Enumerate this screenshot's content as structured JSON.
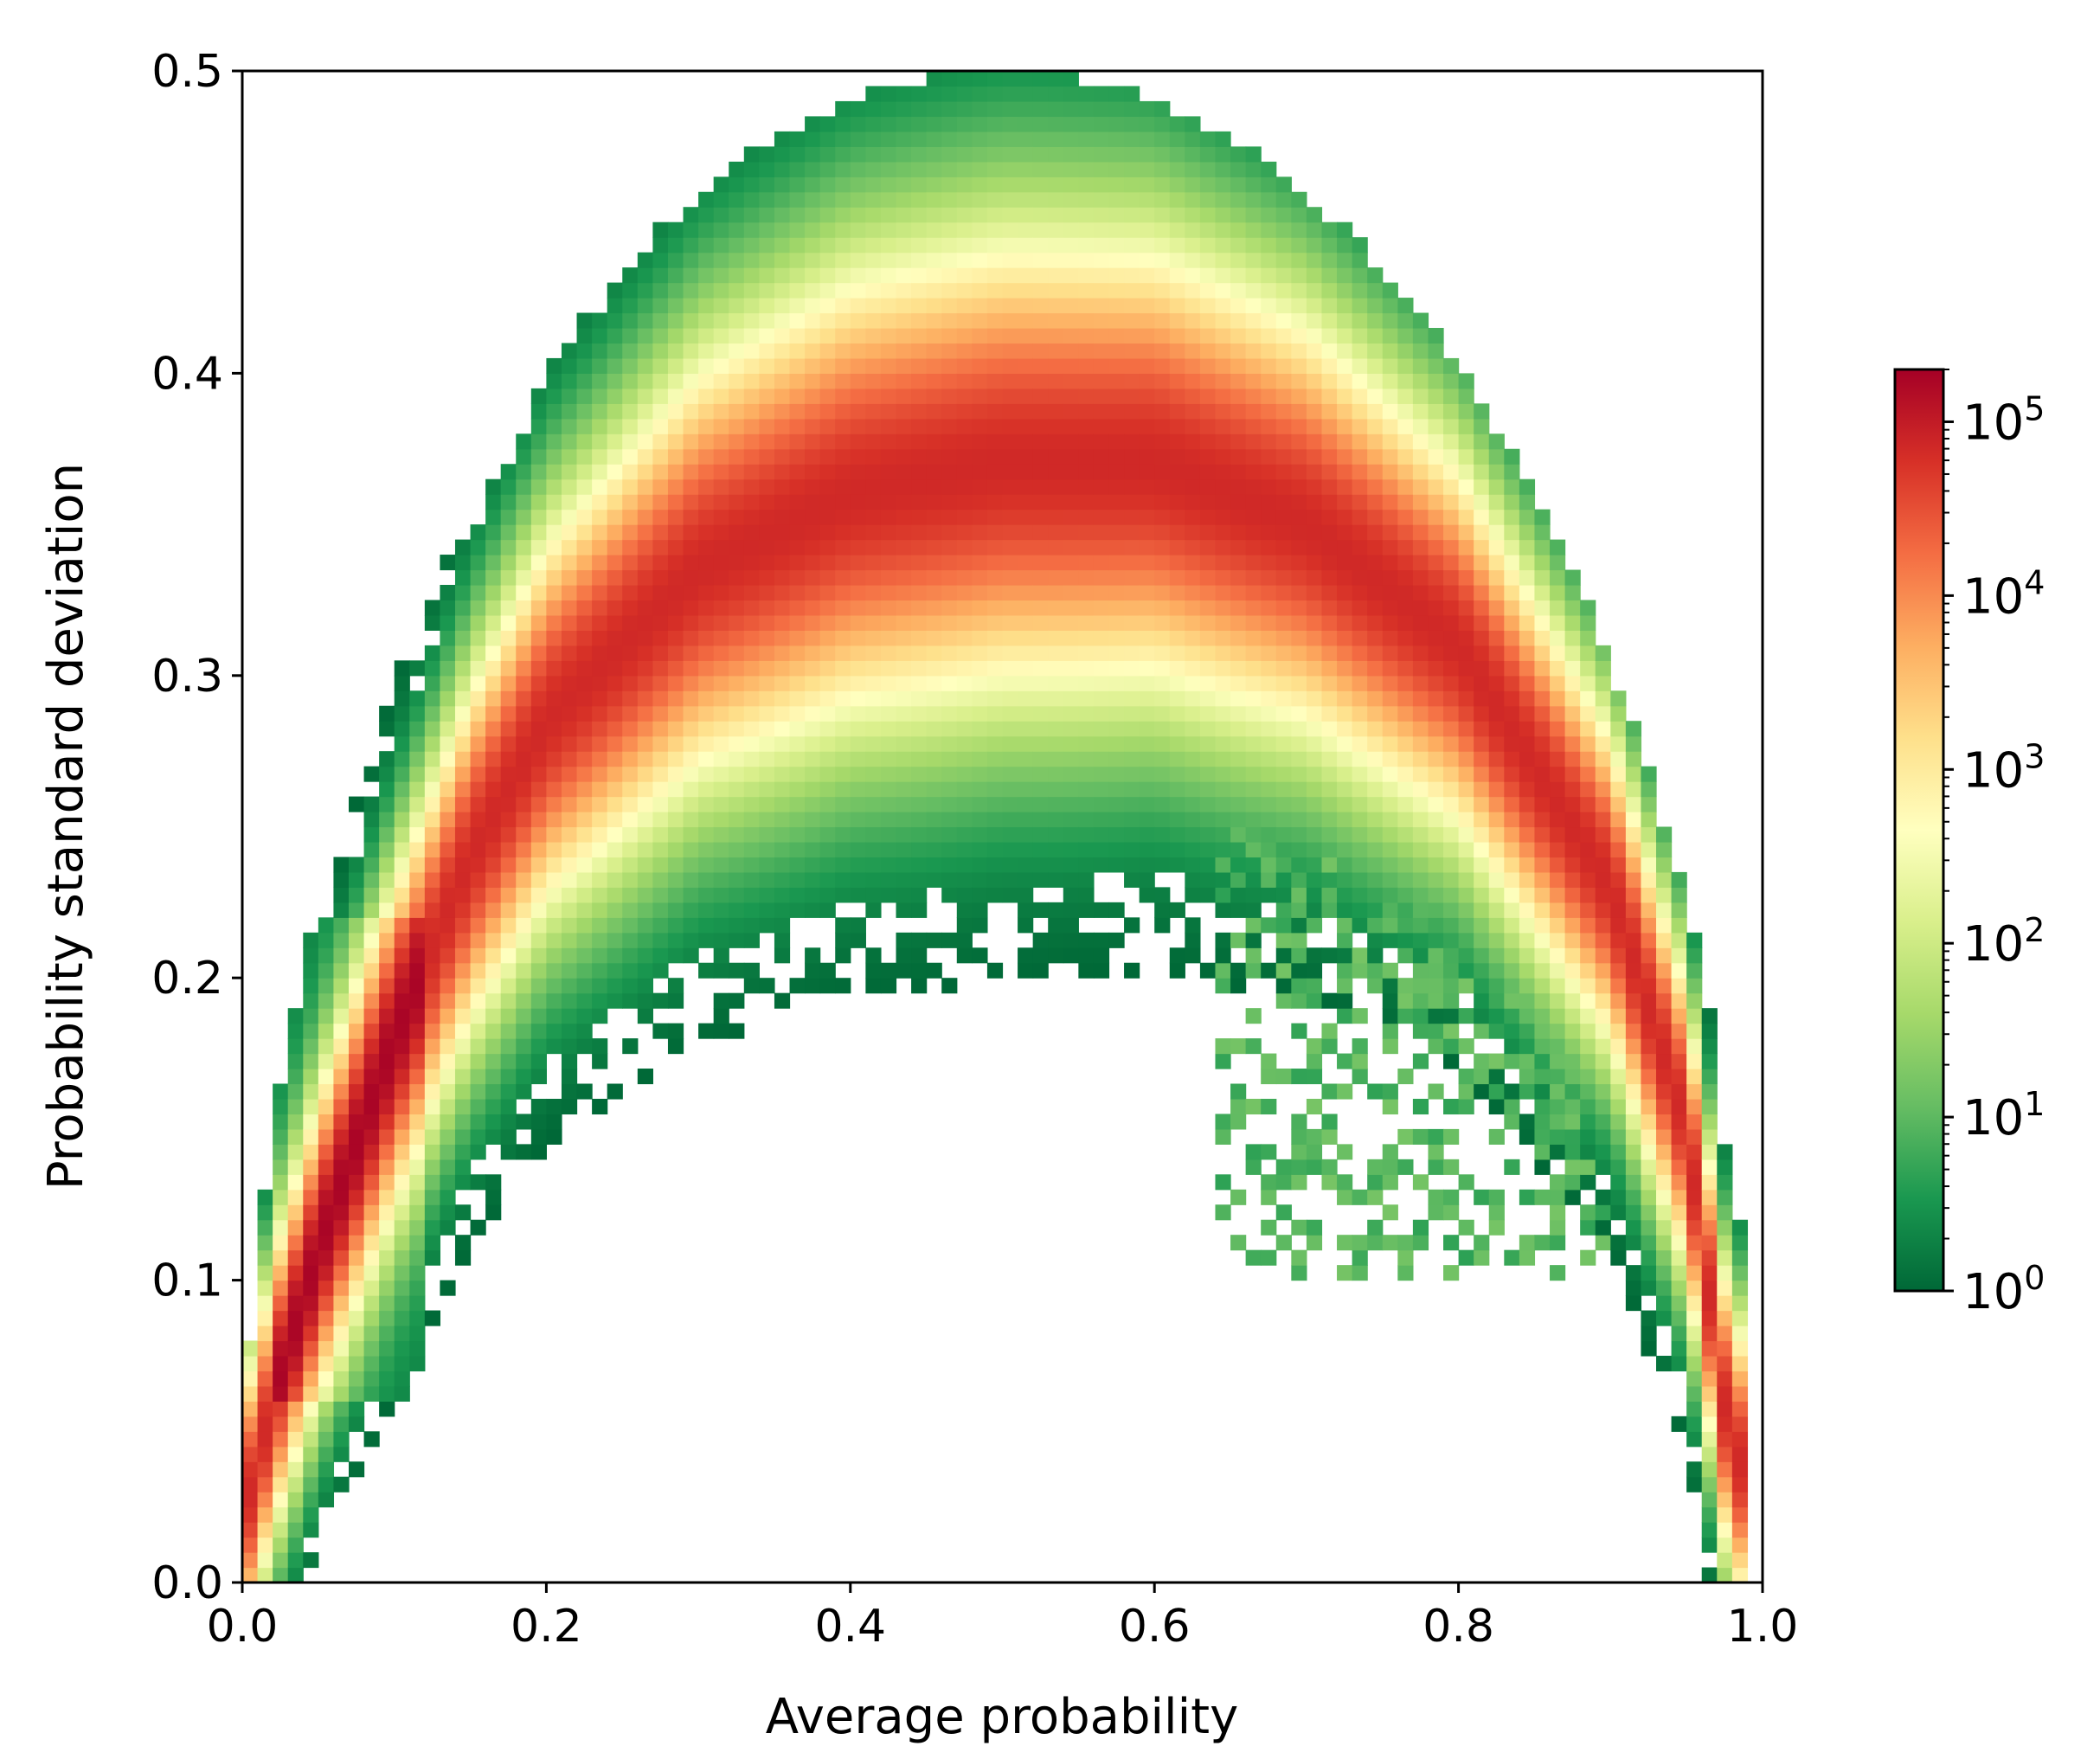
{
  "chart_data": {
    "type": "heatmap",
    "title": "",
    "xlabel": "Average probability",
    "ylabel": "Probability standard deviation",
    "xlim": [
      0.0,
      1.0
    ],
    "ylim": [
      0.0,
      0.5
    ],
    "x_ticks": [
      "0.0",
      "0.2",
      "0.4",
      "0.6",
      "0.8",
      "1.0"
    ],
    "y_ticks": [
      "0.0",
      "0.1",
      "0.2",
      "0.3",
      "0.4",
      "0.5"
    ],
    "grid": false,
    "colorscale": {
      "name": "RdYlGn_r",
      "scale": "log",
      "range": [
        1,
        200000
      ],
      "tick_labels": [
        {
          "base": "10",
          "exp": "0"
        },
        {
          "base": "10",
          "exp": "1"
        },
        {
          "base": "10",
          "exp": "2"
        },
        {
          "base": "10",
          "exp": "3"
        },
        {
          "base": "10",
          "exp": "4"
        },
        {
          "base": "10",
          "exp": "5"
        }
      ],
      "colors": [
        "#006837",
        "#1a9850",
        "#66bd63",
        "#a6d96a",
        "#d9ef8b",
        "#ffffbf",
        "#fee08b",
        "#fdae61",
        "#f46d43",
        "#d73027",
        "#a50026"
      ]
    },
    "bins": {
      "x": 100,
      "y": 100
    },
    "main_arc": {
      "center_std_at_mean": [
        [
          0.0,
          0.02
        ],
        [
          0.02,
          0.06
        ],
        [
          0.05,
          0.11
        ],
        [
          0.1,
          0.18
        ],
        [
          0.15,
          0.24
        ],
        [
          0.2,
          0.285
        ],
        [
          0.3,
          0.335
        ],
        [
          0.4,
          0.36
        ],
        [
          0.5,
          0.37
        ],
        [
          0.6,
          0.37
        ],
        [
          0.7,
          0.35
        ],
        [
          0.8,
          0.31
        ],
        [
          0.9,
          0.23
        ],
        [
          0.95,
          0.15
        ],
        [
          0.98,
          0.04
        ]
      ],
      "peak_count_region": {
        "mean": [
          0.02,
          0.12
        ],
        "std": [
          0.06,
          0.22
        ],
        "count": 200000
      }
    },
    "secondary_cluster": {
      "mean_range": [
        0.64,
        0.9
      ],
      "std_range": [
        0.1,
        0.25
      ],
      "max_count": 30
    }
  }
}
